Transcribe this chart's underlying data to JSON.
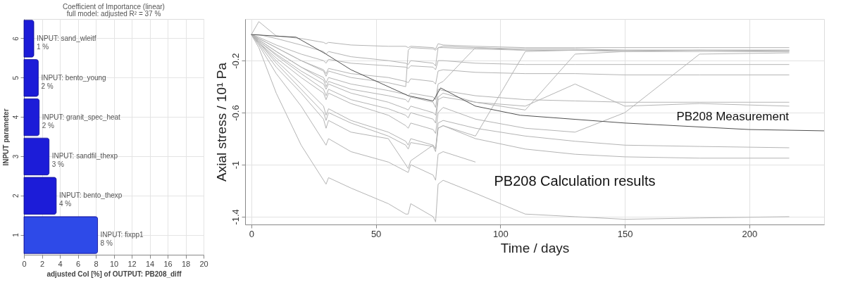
{
  "chart_data": [
    {
      "type": "bar",
      "orientation": "horizontal",
      "title": "Coefficient of Importance (linear)",
      "subtitle": "full model: adjusted R² =    37 %",
      "xlabel": "adjusted CoI [%] of OUTPUT: PB208_diff",
      "ylabel": "INPUT parameter",
      "categories": [
        "6",
        "5",
        "4",
        "3",
        "2",
        "1"
      ],
      "values": [
        1.1,
        1.6,
        1.7,
        2.8,
        3.6,
        8.2
      ],
      "colors": [
        "#1c1cd8",
        "#1c1cd8",
        "#1c1cd8",
        "#1c1cd8",
        "#1c1cd8",
        "#2e4ae8"
      ],
      "value_labels": [
        "INPUT: sand_wleitf\n1 %",
        "INPUT: bento_young\n2 %",
        "INPUT: granit_spec_heat\n2 %",
        "INPUT: sandfil_thexp\n3 %",
        "INPUT: bento_thexp\n4 %",
        "INPUT: fixpp1\n8 %"
      ],
      "xlim": [
        0,
        20
      ],
      "xticks": [
        0,
        2,
        4,
        6,
        8,
        10,
        12,
        14,
        16,
        18,
        20
      ],
      "grid": true
    },
    {
      "type": "line",
      "xlabel": "Time  / days",
      "ylabel": "Axial stress / 10¹ Pa",
      "x": [
        0,
        3,
        10,
        20,
        29,
        30,
        31,
        40,
        55,
        62,
        63,
        64,
        73,
        74,
        75,
        77,
        90,
        110,
        130,
        150,
        180,
        216
      ],
      "series": [
        {
          "color": "#b4b4b4",
          "values": [
            0,
            0.1,
            -0.01,
            -0.03,
            -0.06,
            -0.07,
            -0.06,
            -0.08,
            -0.09,
            -0.09,
            -0.1,
            -0.09,
            -0.1,
            -0.11,
            -0.07,
            -0.08,
            -0.09,
            -0.1,
            -0.1,
            -0.1,
            -0.1,
            -0.1
          ]
        },
        {
          "color": "#b4b4b4",
          "values": [
            0,
            0,
            -0.03,
            -0.08,
            -0.13,
            -0.15,
            -0.13,
            -0.17,
            -0.2,
            -0.22,
            -0.23,
            -0.2,
            -0.22,
            -0.24,
            -0.1,
            -0.09,
            -0.1,
            -0.11,
            -0.11,
            -0.12,
            -0.12,
            -0.12
          ]
        },
        {
          "color": "#b4b4b4",
          "values": [
            0,
            -0.03,
            -0.1,
            -0.2,
            -0.28,
            -0.32,
            -0.28,
            -0.33,
            -0.37,
            -0.4,
            -0.12,
            -0.1,
            -0.11,
            -0.12,
            -0.1,
            -0.1,
            -0.11,
            -0.12,
            -0.12,
            -0.12,
            -0.12,
            -0.13
          ]
        },
        {
          "color": "#b4b4b4",
          "values": [
            0,
            -0.04,
            -0.13,
            -0.25,
            -0.33,
            -0.37,
            -0.33,
            -0.38,
            -0.43,
            -0.46,
            -0.47,
            -0.45,
            -0.48,
            -0.5,
            -0.38,
            -0.36,
            -0.1,
            -0.12,
            -0.12,
            -0.13,
            -0.13,
            -0.13
          ]
        },
        {
          "color": "#b4b4b4",
          "values": [
            0,
            -0.05,
            -0.15,
            -0.28,
            -0.38,
            -0.42,
            -0.38,
            -0.45,
            -0.52,
            -0.57,
            -0.58,
            -0.55,
            -0.6,
            -0.62,
            -0.48,
            -0.45,
            -0.52,
            -0.58,
            -0.15,
            -0.13,
            -0.12,
            -0.12
          ]
        },
        {
          "color": "#b4b4b4",
          "values": [
            0,
            -0.06,
            -0.18,
            -0.33,
            -0.45,
            -0.5,
            -0.45,
            -0.53,
            -0.62,
            -0.7,
            -0.72,
            -0.68,
            -0.73,
            -0.76,
            -0.6,
            -0.56,
            -0.65,
            -0.72,
            -0.75,
            -0.6,
            -0.15,
            -0.14
          ]
        },
        {
          "color": "#b4b4b4",
          "values": [
            0,
            -0.02,
            -0.08,
            -0.15,
            -0.2,
            -0.22,
            -0.19,
            -0.22,
            -0.24,
            -0.25,
            -0.26,
            -0.24,
            -0.25,
            -0.27,
            -0.2,
            -0.2,
            -0.22,
            -0.23,
            -0.23,
            -0.23,
            -0.23,
            -0.23
          ]
        },
        {
          "color": "#b4b4b4",
          "values": [
            0,
            -0.03,
            -0.1,
            -0.2,
            -0.27,
            -0.3,
            -0.26,
            -0.3,
            -0.33,
            -0.36,
            -0.37,
            -0.34,
            -0.36,
            -0.38,
            -0.28,
            -0.27,
            -0.29,
            -0.3,
            -0.3,
            -0.31,
            -0.31,
            -0.31
          ]
        },
        {
          "color": "#b4b4b4",
          "values": [
            0,
            -0.04,
            -0.13,
            -0.25,
            -0.35,
            -0.4,
            -0.36,
            -0.42,
            -0.47,
            -0.5,
            -0.52,
            -0.48,
            -0.52,
            -0.56,
            -0.42,
            -0.43,
            -0.47,
            -0.5,
            -0.51,
            -0.52,
            -0.52,
            -0.52
          ]
        },
        {
          "color": "#b4b4b4",
          "values": [
            0,
            -0.05,
            -0.16,
            -0.3,
            -0.42,
            -0.47,
            -0.42,
            -0.5,
            -0.57,
            -0.62,
            -0.64,
            -0.6,
            -0.65,
            -0.68,
            -0.5,
            -0.48,
            -0.52,
            -0.55,
            -0.38,
            -0.55,
            -0.53,
            -0.55
          ]
        },
        {
          "color": "#b4b4b4",
          "values": [
            0,
            -0.06,
            -0.2,
            -0.38,
            -0.55,
            -0.62,
            -0.57,
            -0.66,
            -0.75,
            -0.82,
            -0.85,
            -0.8,
            -0.85,
            -0.88,
            -0.68,
            -0.66,
            -0.72,
            -0.78,
            -0.82,
            -0.85,
            -0.86,
            -0.87
          ]
        },
        {
          "color": "#b4b4b4",
          "values": [
            0,
            -0.07,
            -0.25,
            -0.45,
            -0.65,
            -0.72,
            -0.66,
            -0.75,
            -0.8,
            -1.0,
            -1.03,
            -0.97,
            -0.85,
            -0.88,
            -0.72,
            -0.7,
            -0.8,
            -0.88,
            -0.92,
            -0.94,
            -0.95,
            -0.95
          ]
        },
        {
          "color": "#b4b4b4",
          "values": [
            0,
            -0.06,
            -0.22,
            -0.42,
            -0.6,
            -0.66,
            -0.6,
            -0.68,
            -0.78,
            -0.85,
            -0.88,
            -0.83,
            -0.86,
            -0.9,
            -0.72,
            -0.7,
            -0.78,
            -0.13,
            -0.12,
            -0.12,
            -0.12,
            -0.12
          ]
        },
        {
          "color": "#b4b4b4",
          "values": [
            0,
            -0.08,
            -0.3,
            -0.55,
            -0.82,
            -0.85,
            -0.8,
            -0.9,
            -0.98,
            -1.05,
            -1.06,
            -1.0,
            -1.08,
            -1.12,
            -0.92,
            -0.9,
            -0.98,
            null,
            null,
            null,
            null,
            null
          ]
        },
        {
          "color": "#b4b4b4",
          "values": [
            0,
            -0.1,
            -0.45,
            -0.85,
            -1.12,
            -1.15,
            -1.1,
            -1.18,
            -1.3,
            -1.38,
            -1.38,
            -1.3,
            -1.4,
            -1.44,
            -1.15,
            -1.12,
            -1.22,
            -1.38,
            -1.4,
            -1.42,
            -1.41,
            -1.4
          ]
        },
        {
          "color": "#505050",
          "x": [
            0,
            18,
            30,
            40,
            63,
            73,
            76,
            90,
            108,
            150,
            200,
            230
          ],
          "values": [
            0,
            -0.02,
            -0.15,
            -0.27,
            -0.47,
            -0.51,
            -0.41,
            -0.55,
            -0.62,
            -0.68,
            -0.73,
            -0.74
          ]
        }
      ],
      "annotations": [
        "PB208 Measurement",
        "PB208 Calculation results"
      ],
      "xlim": [
        -2.5,
        230
      ],
      "xticks": [
        0,
        50,
        100,
        150,
        200
      ],
      "ylim": [
        -1.46,
        0.12
      ],
      "yticks": [
        -0.2,
        -0.6,
        {
          "value": -1,
          "label": "-1"
        },
        -1.4
      ],
      "grid": true
    }
  ]
}
